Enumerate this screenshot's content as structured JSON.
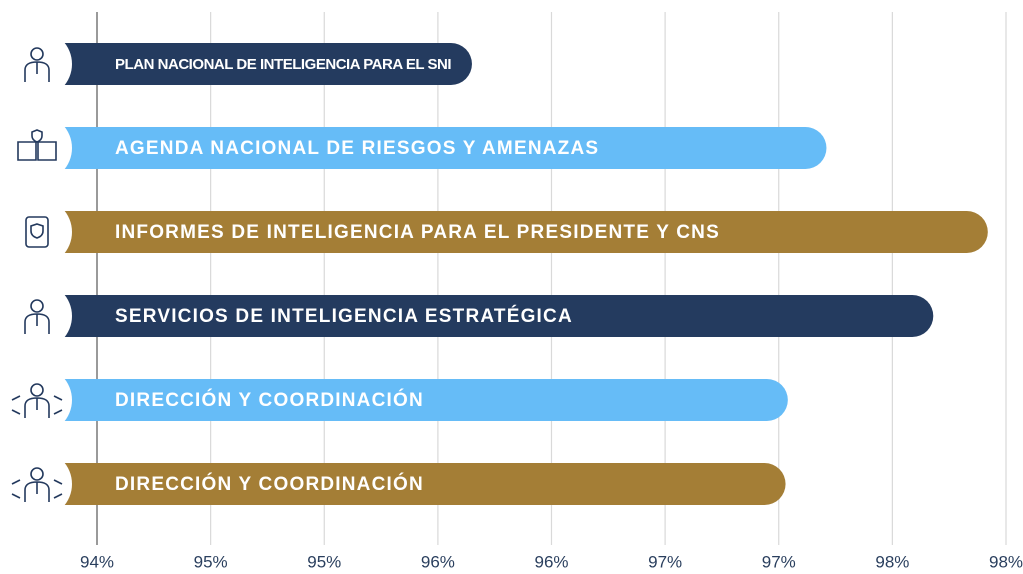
{
  "chart_data": {
    "type": "bar",
    "orientation": "horizontal",
    "categories": [
      "PLAN NACIONAL DE INTELIGENCIA PARA EL SNI",
      "AGENDA NACIONAL DE RIESGOS Y AMENAZAS",
      "INFORMES DE INTELIGENCIA PARA EL PRESIDENTE Y CNS",
      "SERVICIOS DE INTELIGENCIA ESTRATÉGICA",
      "DIRECCIÓN Y COORDINACIÓN",
      "DIRECCIÓN Y COORDINACIÓN"
    ],
    "values": [
      95.65,
      97.21,
      97.92,
      97.68,
      97.04,
      97.03
    ],
    "colors": [
      "#243b5f",
      "#66bcf7",
      "#a47e36",
      "#243b5f",
      "#66bcf7",
      "#a47e36"
    ],
    "xlim": [
      94,
      98
    ],
    "xticks": [
      {
        "value": 94,
        "label": "94%"
      },
      {
        "value": 94.5,
        "label": "95%"
      },
      {
        "value": 95,
        "label": "95%"
      },
      {
        "value": 95.5,
        "label": "96%"
      },
      {
        "value": 96,
        "label": "96%"
      },
      {
        "value": 96.5,
        "label": "97%"
      },
      {
        "value": 97,
        "label": "97%"
      },
      {
        "value": 97.5,
        "label": "98%"
      },
      {
        "value": 98,
        "label": "98%"
      }
    ],
    "grid": true
  }
}
